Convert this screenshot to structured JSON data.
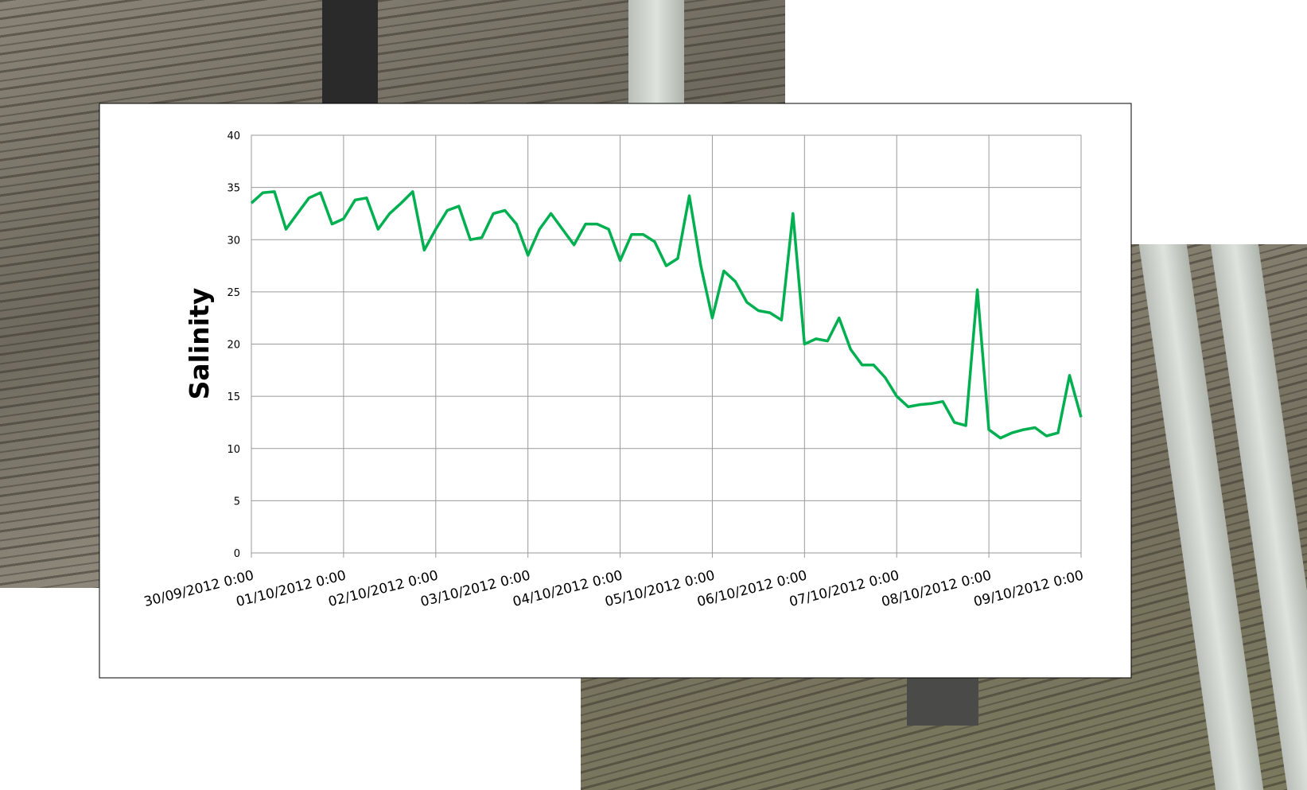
{
  "chart_data": {
    "type": "line",
    "ylabel": "Salinity",
    "x": [
      "30/09/2012 0:00",
      "30/09/2012 3:00",
      "30/09/2012 6:00",
      "30/09/2012 9:00",
      "30/09/2012 12:00",
      "30/09/2012 15:00",
      "30/09/2012 18:00",
      "30/09/2012 21:00",
      "01/10/2012 0:00",
      "01/10/2012 3:00",
      "01/10/2012 6:00",
      "01/10/2012 9:00",
      "01/10/2012 12:00",
      "01/10/2012 15:00",
      "01/10/2012 18:00",
      "01/10/2012 21:00",
      "02/10/2012 0:00",
      "02/10/2012 3:00",
      "02/10/2012 6:00",
      "02/10/2012 9:00",
      "02/10/2012 12:00",
      "02/10/2012 15:00",
      "02/10/2012 18:00",
      "02/10/2012 21:00",
      "03/10/2012 0:00",
      "03/10/2012 3:00",
      "03/10/2012 6:00",
      "03/10/2012 9:00",
      "03/10/2012 12:00",
      "03/10/2012 15:00",
      "03/10/2012 18:00",
      "03/10/2012 21:00",
      "04/10/2012 0:00",
      "04/10/2012 3:00",
      "04/10/2012 6:00",
      "04/10/2012 9:00",
      "04/10/2012 12:00",
      "04/10/2012 15:00",
      "04/10/2012 18:00",
      "04/10/2012 21:00",
      "05/10/2012 0:00",
      "05/10/2012 3:00",
      "05/10/2012 6:00",
      "05/10/2012 9:00",
      "05/10/2012 12:00",
      "05/10/2012 15:00",
      "05/10/2012 18:00",
      "05/10/2012 21:00",
      "06/10/2012 0:00",
      "06/10/2012 3:00",
      "06/10/2012 6:00",
      "06/10/2012 9:00",
      "06/10/2012 12:00",
      "06/10/2012 15:00",
      "06/10/2012 18:00",
      "06/10/2012 21:00",
      "07/10/2012 0:00",
      "07/10/2012 3:00",
      "07/10/2012 6:00",
      "07/10/2012 9:00",
      "07/10/2012 12:00",
      "07/10/2012 15:00",
      "07/10/2012 18:00",
      "07/10/2012 21:00",
      "08/10/2012 0:00",
      "08/10/2012 3:00",
      "08/10/2012 6:00",
      "08/10/2012 9:00",
      "08/10/2012 12:00",
      "08/10/2012 15:00",
      "08/10/2012 18:00",
      "08/10/2012 21:00",
      "09/10/2012 0:00"
    ],
    "series": [
      {
        "color": "#00b050",
        "values": [
          33.5,
          34.5,
          34.6,
          31.0,
          32.5,
          34.0,
          34.5,
          31.5,
          32.0,
          33.8,
          34.0,
          31.0,
          32.5,
          33.5,
          34.6,
          29.0,
          31.0,
          32.8,
          33.2,
          30.0,
          30.2,
          32.5,
          32.8,
          31.5,
          28.5,
          31.0,
          32.5,
          31.0,
          29.5,
          31.5,
          31.5,
          31.0,
          28.0,
          30.5,
          30.5,
          29.8,
          27.5,
          28.2,
          34.2,
          27.5,
          22.5,
          27.0,
          26.0,
          24.0,
          23.2,
          23.0,
          22.3,
          32.5,
          20.0,
          20.5,
          20.3,
          22.5,
          19.5,
          18.0,
          18.0,
          16.8,
          15.0,
          14.0,
          14.2,
          14.3,
          14.5,
          12.5,
          12.2,
          25.2,
          11.8,
          11.0,
          11.5,
          11.8,
          12.0,
          11.2,
          11.5,
          17.0,
          13.0
        ]
      }
    ],
    "xlim": [
      "30/09/2012 0:00",
      "09/10/2012 0:00"
    ],
    "xticks": [
      "30/09/2012 0:00",
      "01/10/2012 0:00",
      "02/10/2012 0:00",
      "03/10/2012 0:00",
      "04/10/2012 0:00",
      "05/10/2012 0:00",
      "06/10/2012 0:00",
      "07/10/2012 0:00",
      "08/10/2012 0:00",
      "09/10/2012 0:00"
    ],
    "ylim": [
      0,
      40
    ],
    "yticks": [
      0,
      5,
      10,
      15,
      20,
      25,
      30,
      35,
      40
    ],
    "grid": true
  }
}
